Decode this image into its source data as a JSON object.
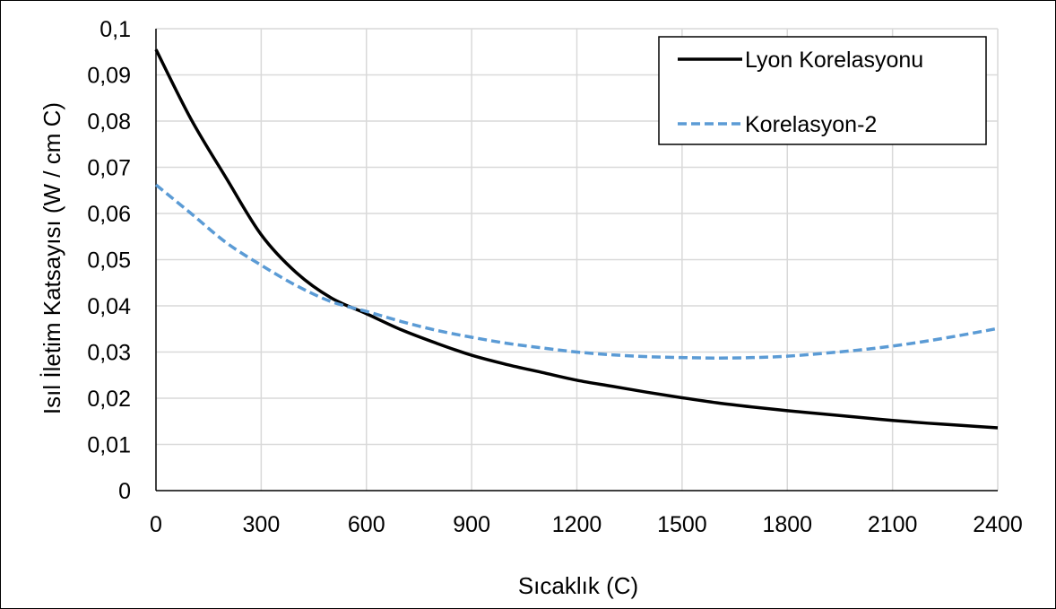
{
  "chart_data": {
    "type": "line",
    "title": "",
    "xlabel": "Sıcaklık (C)",
    "ylabel": "Isıl İletim Katsayısı (W / cm C)",
    "xlim": [
      0,
      2400
    ],
    "ylim": [
      0,
      0.1
    ],
    "x_ticks": [
      0,
      300,
      600,
      900,
      1200,
      1500,
      1800,
      2100,
      2400
    ],
    "x_tick_labels": [
      "0",
      "300",
      "600",
      "900",
      "1200",
      "1500",
      "1800",
      "2100",
      "2400"
    ],
    "y_ticks": [
      0,
      0.01,
      0.02,
      0.03,
      0.04,
      0.05,
      0.06,
      0.07,
      0.08,
      0.09,
      0.1
    ],
    "y_tick_labels": [
      "0",
      "0,01",
      "0,02",
      "0,03",
      "0,04",
      "0,05",
      "0,06",
      "0,07",
      "0,08",
      "0,09",
      "0,1"
    ],
    "grid": true,
    "legend_position": "top-right",
    "x": [
      0,
      100,
      200,
      300,
      400,
      500,
      600,
      700,
      800,
      900,
      1000,
      1100,
      1200,
      1300,
      1400,
      1500,
      1600,
      1700,
      1800,
      1900,
      2000,
      2100,
      2200,
      2300,
      2400
    ],
    "series": [
      {
        "name": "Lyon Korelasyonu",
        "color": "#000000",
        "dash": "solid",
        "values": [
          0.0955,
          0.0804,
          0.0677,
          0.0554,
          0.0472,
          0.0417,
          0.0383,
          0.0348,
          0.0319,
          0.0293,
          0.0273,
          0.0256,
          0.0239,
          0.0226,
          0.0213,
          0.0201,
          0.019,
          0.0181,
          0.0173,
          0.0166,
          0.0159,
          0.0152,
          0.0146,
          0.0141,
          0.0136
        ]
      },
      {
        "name": "Korelasyon-2",
        "color": "#5b9bd5",
        "dash": "dashed",
        "values": [
          0.0662,
          0.06,
          0.0537,
          0.0488,
          0.0444,
          0.0409,
          0.0388,
          0.0366,
          0.0347,
          0.0332,
          0.0319,
          0.0309,
          0.03,
          0.0294,
          0.029,
          0.0288,
          0.0287,
          0.0288,
          0.0291,
          0.0297,
          0.0304,
          0.0313,
          0.0324,
          0.0337,
          0.0351
        ]
      }
    ]
  }
}
